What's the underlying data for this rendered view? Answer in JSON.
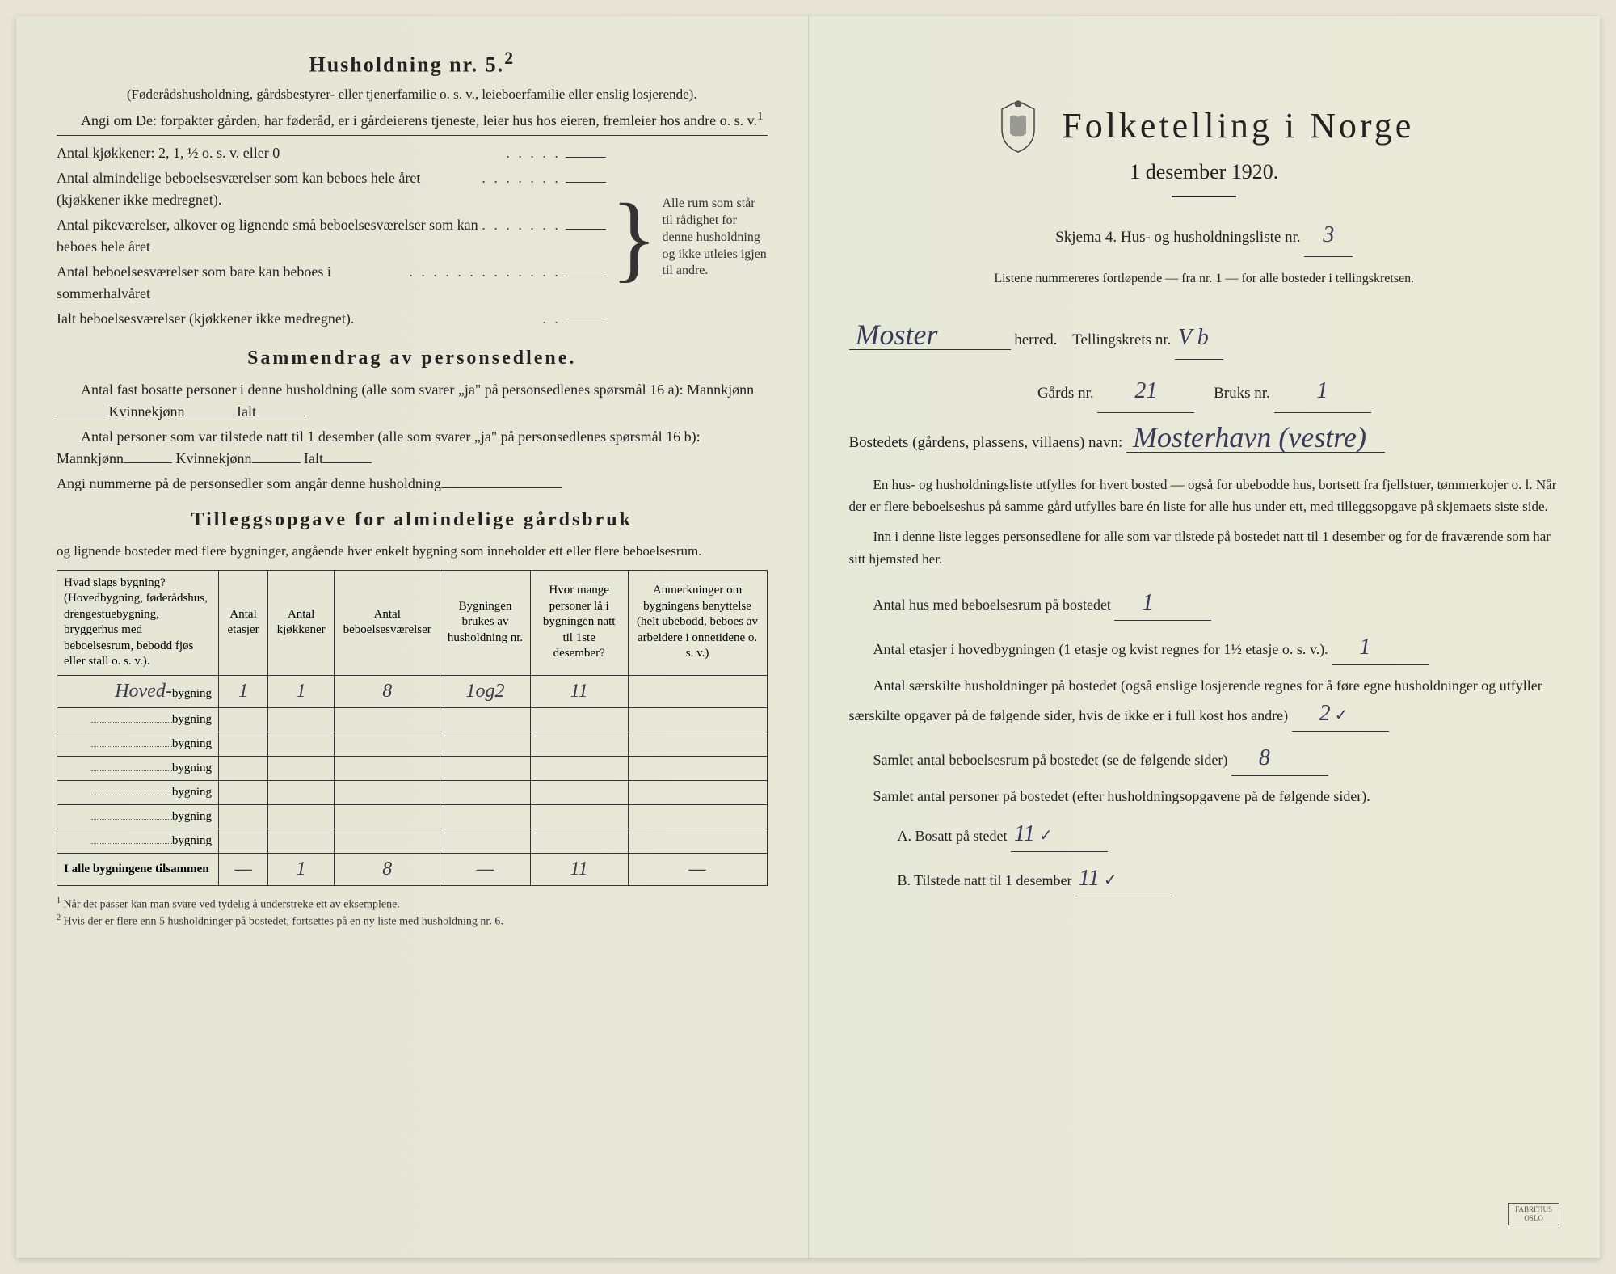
{
  "left_page": {
    "heading": "Husholdning nr. 5.",
    "heading_sup": "2",
    "intro_paren": "(Føderådshusholdning, gårdsbestyrer- eller tjenerfamilie o. s. v., leieboerfamilie eller enslig losjerende).",
    "angi_line": "Angi om De: forpakter gården, har føderåd, er i gårdeierens tjeneste, leier hus hos eieren, fremleier hos andre o. s. v.",
    "angi_sup": "1",
    "kitchen_line": "Antal kjøkkener: 2, 1, ½ o. s. v. eller 0",
    "room_lines": [
      "Antal almindelige beboelsesværelser som kan beboes hele året (kjøkkener ikke medregnet).",
      "Antal pikeværelser, alkover og lignende små beboelsesværelser som kan beboes hele året",
      "Antal beboelsesværelser som bare kan beboes i sommerhalvåret",
      "Ialt beboelsesværelser (kjøkkener ikke medregnet)."
    ],
    "brace_text": "Alle rum som står til rådighet for denne husholdning og ikke utleies igjen til andre.",
    "sammendrag_heading": "Sammendrag av personsedlene.",
    "sammendrag_l1": "Antal fast bosatte personer i denne husholdning (alle som svarer „ja\" på personsedlenes spørsmål 16 a): Mannkjønn",
    "kvinnekjonn": "Kvinnekjønn",
    "ialt": "Ialt",
    "sammendrag_l2": "Antal personer som var tilstede natt til 1 desember (alle som svarer „ja\" på personsedlenes spørsmål 16 b): Mannkjønn",
    "angi_nummer": "Angi nummerne på de personsedler som angår denne husholdning",
    "tillegg_heading": "Tilleggsopgave for almindelige gårdsbruk",
    "tillegg_intro": "og lignende bosteder med flere bygninger, angående hver enkelt bygning som inneholder ett eller flere beboelsesrum.",
    "table": {
      "headers": [
        "Hvad slags bygning?\n(Hovedbygning, føderådshus, drengestuebygning, bryggerhus med beboelsesrum, bebodd fjøs eller stall o. s. v.).",
        "Antal etasjer",
        "Antal kjøkkener",
        "Antal beboelsesværelser",
        "Bygningen brukes av husholdning nr.",
        "Hvor mange personer lå i bygningen natt til 1ste desember?",
        "Anmerkninger om bygningens benyttelse (helt ubebodd, beboes av arbeidere i onnetidene o. s. v.)"
      ],
      "row_label": "bygning",
      "first_row_prefix": "Hoved-",
      "rows": [
        [
          "1",
          "1",
          "8",
          "1og2",
          "11",
          ""
        ],
        [
          "",
          "",
          "",
          "",
          "",
          ""
        ],
        [
          "",
          "",
          "",
          "",
          "",
          ""
        ],
        [
          "",
          "",
          "",
          "",
          "",
          ""
        ],
        [
          "",
          "",
          "",
          "",
          "",
          ""
        ],
        [
          "",
          "",
          "",
          "",
          "",
          ""
        ],
        [
          "",
          "",
          "",
          "",
          "",
          ""
        ]
      ],
      "total_label": "I alle bygningene tilsammen",
      "total_row": [
        "—",
        "1",
        "8",
        "—",
        "11",
        "—"
      ]
    },
    "footnote1": "Når det passer kan man svare ved tydelig å understreke ett av eksemplene.",
    "footnote2": "Hvis der er flere enn 5 husholdninger på bostedet, fortsettes på en ny liste med husholdning nr. 6."
  },
  "right_page": {
    "main_title": "Folketelling i Norge",
    "subtitle": "1 desember 1920.",
    "skjema_line": "Skjema 4.   Hus- og husholdningsliste nr.",
    "skjema_nr": "3",
    "listene_line": "Listene nummereres fortløpende — fra nr. 1 — for alle bosteder i tellingskretsen.",
    "herred_value": "Moster",
    "herred_label": "herred.",
    "tellingskrets_label": "Tellingskrets nr.",
    "tellingskrets_value": "V b",
    "gards_label": "Gårds nr.",
    "gards_value": "21",
    "bruks_label": "Bruks nr.",
    "bruks_value": "1",
    "bosted_label": "Bostedets (gårdens, plassens, villaens) navn:",
    "bosted_value": "Mosterhavn (vestre)",
    "para1": "En hus- og husholdningsliste utfylles for hvert bosted — også for ubebodde hus, bortsett fra fjellstuer, tømmerkojer o. l. Når der er flere beboelseshus på samme gård utfylles bare én liste for alle hus under ett, med tilleggsopgave på skjemaets siste side.",
    "para2": "Inn i denne liste legges personsedlene for alle som var tilstede på bostedet natt til 1 desember og for de fraværende som har sitt hjemsted her.",
    "q1": "Antal hus med beboelsesrum på bostedet",
    "q1_value": "1",
    "q2": "Antal etasjer i hovedbygningen (1 etasje og kvist regnes for 1½ etasje o. s. v.).",
    "q2_value": "1",
    "q3": "Antal særskilte husholdninger på bostedet (også enslige losjerende regnes for å føre egne husholdninger og utfyller særskilte opgaver på de følgende sider, hvis de ikke er i full kost hos andre)",
    "q3_value": "2",
    "q4": "Samlet antal beboelsesrum på bostedet (se de følgende sider)",
    "q4_value": "8",
    "q5": "Samlet antal personer på bostedet (efter husholdningsopgavene på de følgende sider).",
    "qa_label": "A.  Bosatt på stedet",
    "qa_value": "11",
    "qb_label": "B.  Tilstede natt til 1 desember",
    "qb_value": "11",
    "colors": {
      "paper": "#e8e8d8",
      "ink": "#222222",
      "handwriting": "#3a3a5a",
      "border": "#333333"
    }
  }
}
